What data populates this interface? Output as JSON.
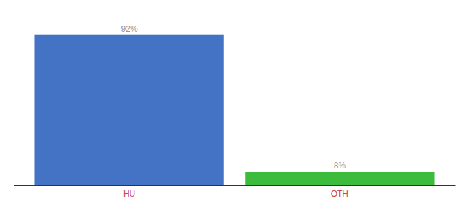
{
  "chart_data": {
    "type": "bar",
    "categories": [
      "HU",
      "OTH"
    ],
    "values": [
      92,
      8
    ],
    "value_labels": [
      "92%",
      "8%"
    ],
    "colors": [
      "#4472c4",
      "#3dbb3d"
    ],
    "ylim": [
      0,
      105
    ],
    "data_labels": true,
    "tick_labels": "x"
  }
}
